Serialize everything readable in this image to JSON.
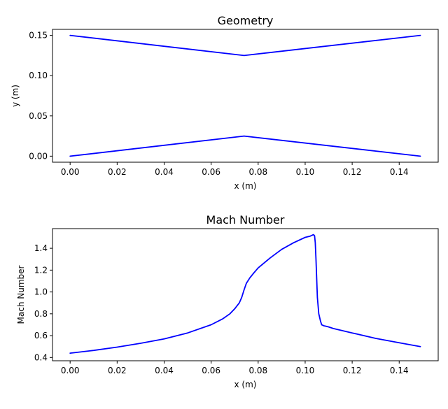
{
  "chart_data": [
    {
      "type": "line",
      "title": "Geometry",
      "xlabel": "x (m)",
      "ylabel": "y (m)",
      "xlim": [
        -0.0075,
        0.1566
      ],
      "ylim": [
        -0.0075,
        0.1575
      ],
      "xticks": [
        0.0,
        0.02,
        0.04,
        0.06,
        0.08,
        0.1,
        0.12,
        0.14
      ],
      "xtick_labels": [
        "0.00",
        "0.02",
        "0.04",
        "0.06",
        "0.08",
        "0.10",
        "0.12",
        "0.14"
      ],
      "yticks": [
        0.0,
        0.05,
        0.1,
        0.15
      ],
      "ytick_labels": [
        "0.00",
        "0.05",
        "0.10",
        "0.15"
      ],
      "grid": false,
      "series": [
        {
          "color": "#0000ff",
          "x": [
            0.0,
            0.074,
            0.149
          ],
          "y": [
            0.15,
            0.125,
            0.15
          ]
        },
        {
          "color": "#0000ff",
          "x": [
            0.0,
            0.074,
            0.149
          ],
          "y": [
            0.0,
            0.025,
            0.0
          ]
        }
      ]
    },
    {
      "type": "line",
      "title": "Mach Number",
      "xlabel": "x (m)",
      "ylabel": "Mach Number",
      "xlim": [
        -0.0075,
        0.1566
      ],
      "ylim": [
        0.37,
        1.58
      ],
      "xticks": [
        0.0,
        0.02,
        0.04,
        0.06,
        0.08,
        0.1,
        0.12,
        0.14
      ],
      "xtick_labels": [
        "0.00",
        "0.02",
        "0.04",
        "0.06",
        "0.08",
        "0.10",
        "0.12",
        "0.14"
      ],
      "yticks": [
        0.4,
        0.6,
        0.8,
        1.0,
        1.2,
        1.4
      ],
      "ytick_labels": [
        "0.4",
        "0.6",
        "0.8",
        "1.0",
        "1.2",
        "1.4"
      ],
      "grid": false,
      "series": [
        {
          "color": "#0000ff",
          "x": [
            0.0,
            0.01,
            0.02,
            0.03,
            0.04,
            0.05,
            0.06,
            0.065,
            0.068,
            0.07,
            0.072,
            0.073,
            0.074,
            0.075,
            0.0765,
            0.078,
            0.08,
            0.085,
            0.09,
            0.095,
            0.1,
            0.102,
            0.103,
            0.1035,
            0.1038,
            0.104,
            0.1043,
            0.1046,
            0.1052,
            0.1058,
            0.1065,
            0.107,
            0.1075,
            0.108,
            0.109,
            0.11,
            0.112,
            0.115,
            0.12,
            0.13,
            0.14,
            0.149
          ],
          "y": [
            0.44,
            0.465,
            0.495,
            0.53,
            0.57,
            0.625,
            0.7,
            0.755,
            0.8,
            0.845,
            0.9,
            0.95,
            1.02,
            1.08,
            1.13,
            1.17,
            1.22,
            1.31,
            1.39,
            1.45,
            1.5,
            1.51,
            1.52,
            1.525,
            1.52,
            1.515,
            1.45,
            1.3,
            0.95,
            0.8,
            0.735,
            0.7,
            0.695,
            0.69,
            0.685,
            0.68,
            0.665,
            0.65,
            0.625,
            0.575,
            0.535,
            0.5
          ]
        }
      ]
    }
  ]
}
